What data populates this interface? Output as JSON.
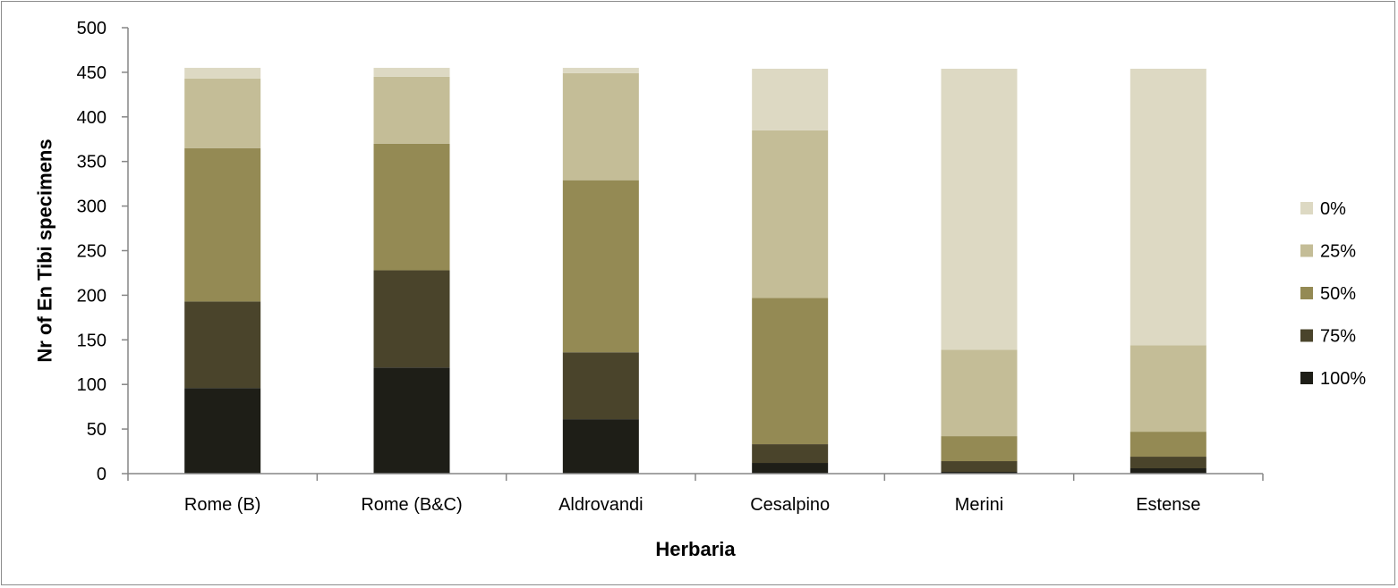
{
  "chart_data": {
    "type": "bar",
    "stacked": true,
    "categories": [
      "Rome (B)",
      "Rome (B&C)",
      "Aldrovandi",
      "Cesalpino",
      "Merini",
      "Estense"
    ],
    "series": [
      {
        "name": "100%",
        "color": "#1e1e17",
        "values": [
          96,
          119,
          61,
          12,
          2,
          6
        ]
      },
      {
        "name": "75%",
        "color": "#4a442b",
        "values": [
          97,
          109,
          75,
          21,
          12,
          13
        ]
      },
      {
        "name": "50%",
        "color": "#948a54",
        "values": [
          172,
          142,
          193,
          164,
          28,
          28
        ]
      },
      {
        "name": "25%",
        "color": "#c4bd97",
        "values": [
          78,
          75,
          120,
          188,
          97,
          97
        ]
      },
      {
        "name": "0%",
        "color": "#ddd9c3",
        "values": [
          12,
          10,
          6,
          69,
          315,
          310
        ]
      }
    ],
    "xlabel": "Herbaria",
    "ylabel": "Nr of En Tibi specimens",
    "ylim": [
      0,
      500
    ],
    "yticks": [
      "0",
      "50",
      "100",
      "150",
      "200",
      "250",
      "300",
      "350",
      "400",
      "450",
      "500"
    ],
    "grid": false,
    "legend_position": "right",
    "legend_order": [
      "0%",
      "25%",
      "50%",
      "75%",
      "100%"
    ]
  }
}
